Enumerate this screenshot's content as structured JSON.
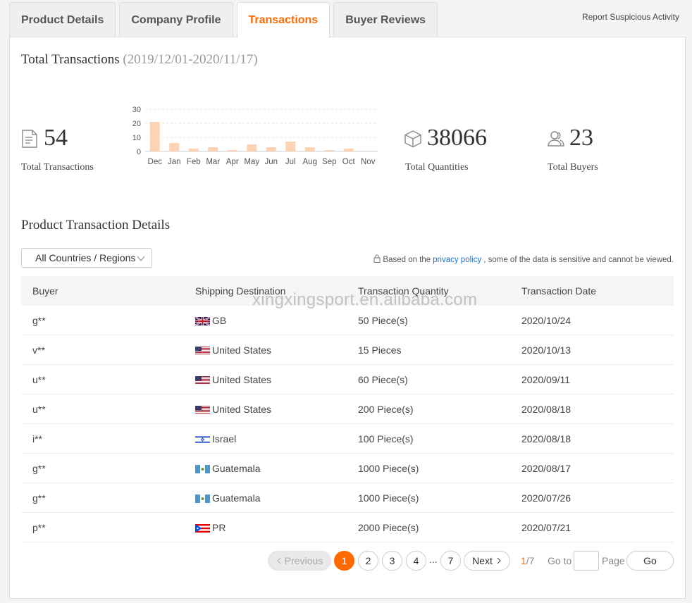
{
  "tabs": [
    {
      "label": "Product Details",
      "active": false
    },
    {
      "label": "Company Profile",
      "active": false
    },
    {
      "label": "Transactions",
      "active": true
    },
    {
      "label": "Buyer Reviews",
      "active": false
    }
  ],
  "report_link": "Report Suspicious Activity",
  "summary": {
    "title": "Total Transactions",
    "date_range": "(2019/12/01-2020/11/17)",
    "total_transactions": {
      "value": "54",
      "label": "Total Transactions",
      "icon": "document-icon"
    },
    "total_quantities": {
      "value": "38066",
      "label": "Total Quantities",
      "icon": "box-icon"
    },
    "total_buyers": {
      "value": "23",
      "label": "Total Buyers",
      "icon": "users-icon"
    }
  },
  "chart_data": {
    "type": "bar",
    "categories": [
      "Dec",
      "Jan",
      "Feb",
      "Mar",
      "Apr",
      "May",
      "Jun",
      "Jul",
      "Aug",
      "Sep",
      "Oct",
      "Nov"
    ],
    "values": [
      21,
      6,
      2,
      3,
      1,
      5,
      3,
      7,
      3,
      1,
      2,
      0
    ],
    "yticks": [
      "30",
      "20",
      "10",
      "0"
    ],
    "ylim": [
      0,
      30
    ],
    "bar_color": "#fdd3b5",
    "grid": true
  },
  "details": {
    "title": "Product Transaction Details",
    "filter_label": "All Countries / Regions",
    "privacy_prefix": "Based on the ",
    "privacy_link": "privacy policy",
    "privacy_suffix": ", some of the data is sensitive and cannot be viewed."
  },
  "table": {
    "headers": [
      "Buyer",
      "Shipping Destination",
      "Transaction Quantity",
      "Transaction Date"
    ],
    "rows": [
      {
        "buyer": "g**",
        "flag": "gb",
        "destination": "GB",
        "quantity": "50 Piece(s)",
        "date": "2020/10/24"
      },
      {
        "buyer": "v**",
        "flag": "us",
        "destination": "United States",
        "quantity": "15 Pieces",
        "date": "2020/10/13"
      },
      {
        "buyer": "u**",
        "flag": "us",
        "destination": "United States",
        "quantity": "60 Piece(s)",
        "date": "2020/09/11"
      },
      {
        "buyer": "u**",
        "flag": "us",
        "destination": "United States",
        "quantity": "200 Piece(s)",
        "date": "2020/08/18"
      },
      {
        "buyer": "i**",
        "flag": "il",
        "destination": "Israel",
        "quantity": "100 Piece(s)",
        "date": "2020/08/18"
      },
      {
        "buyer": "g**",
        "flag": "gt",
        "destination": "Guatemala",
        "quantity": "1000 Piece(s)",
        "date": "2020/08/17"
      },
      {
        "buyer": "g**",
        "flag": "gt",
        "destination": "Guatemala",
        "quantity": "1000 Piece(s)",
        "date": "2020/07/26"
      },
      {
        "buyer": "p**",
        "flag": "pr",
        "destination": "PR",
        "quantity": "2000 Piece(s)",
        "date": "2020/07/21"
      }
    ]
  },
  "watermark": "xingxingsport.en.alibaba.com",
  "pagination": {
    "previous": "Previous",
    "pages": [
      "1",
      "2",
      "3",
      "4"
    ],
    "ellipsis": "...",
    "last_page": "7",
    "next": "Next",
    "current": "1",
    "total": "/7",
    "goto_label": "Go to",
    "page_label": "Page",
    "go_button": "Go"
  },
  "colors": {
    "accent": "#ff6a00",
    "link": "#1a6fd3"
  }
}
